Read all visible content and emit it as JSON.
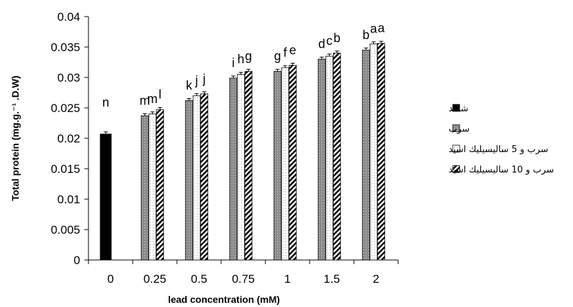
{
  "chart_data": {
    "type": "bar",
    "xlabel": "lead concentration (mM)",
    "ylabel": "Total protein (mg.g.⁻¹ .D.W)",
    "ylim": [
      0,
      0.04
    ],
    "yticks": [
      "0",
      "0.005",
      "0.01",
      "0.015",
      "0.02",
      "0.025",
      "0.03",
      "0.035",
      "0.04"
    ],
    "ytick_values": [
      0,
      0.005,
      0.01,
      0.015,
      0.02,
      0.025,
      0.03,
      0.035,
      0.04
    ],
    "categories": [
      "0",
      "0.25",
      "0.5",
      "0.75",
      "1",
      "1.5",
      "2"
    ],
    "legend_position": "right",
    "series": [
      {
        "name": "شاهد",
        "pattern": "solid-black",
        "color": "#000000",
        "values": [
          0.0207,
          null,
          null,
          null,
          null,
          null,
          null
        ],
        "labels": [
          "n",
          "",
          "",
          "",
          "",
          "",
          ""
        ]
      },
      {
        "name": "سرب",
        "pattern": "gray-dotted",
        "color": "#8c8c8c",
        "values": [
          null,
          0.0237,
          0.0262,
          0.0299,
          0.031,
          0.033,
          0.0345
        ],
        "labels": [
          "",
          "m",
          "k",
          "i",
          "g",
          "d",
          "b"
        ]
      },
      {
        "name": "سرب و 5 ساليسيليك اسيد",
        "pattern": "white-dotted",
        "color": "#ffffff",
        "values": [
          null,
          0.024,
          0.027,
          0.0305,
          0.0316,
          0.0335,
          0.0355
        ],
        "labels": [
          "",
          "m",
          "j",
          "h",
          "f",
          "c",
          "a"
        ]
      },
      {
        "name": "سرب و 10 ساليسيليك اسيد",
        "pattern": "diagonal-hatch",
        "color": "#000000",
        "values": [
          null,
          0.0247,
          0.0273,
          0.031,
          0.032,
          0.034,
          0.0356
        ],
        "labels": [
          "",
          "l",
          "j",
          "g",
          "e",
          "b",
          "a"
        ]
      }
    ]
  }
}
